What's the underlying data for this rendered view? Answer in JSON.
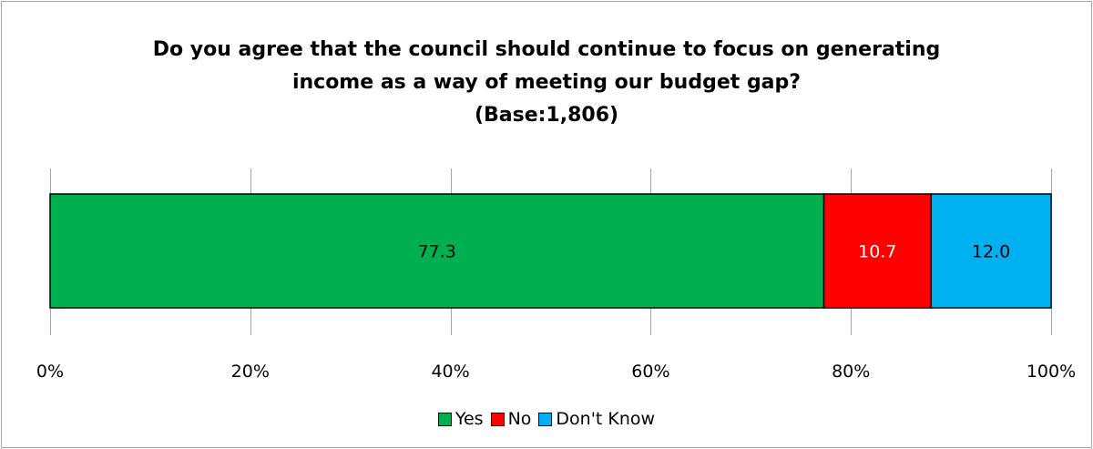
{
  "chart_data": {
    "type": "bar",
    "orientation": "horizontal",
    "stacked": true,
    "title_lines": [
      "Do you agree that the council should continue to focus on generating",
      "income as a way of meeting our budget gap?",
      "(Base:1,806)"
    ],
    "series": [
      {
        "name": "Yes",
        "values": [
          77.3
        ],
        "color": "#00b050",
        "label_color": "#000000"
      },
      {
        "name": "No",
        "values": [
          10.7
        ],
        "color": "#ff0000",
        "label_color": "#ffffff"
      },
      {
        "name": "Don't Know",
        "values": [
          12.0
        ],
        "color": "#00b0f0",
        "label_color": "#000000"
      }
    ],
    "data_labels": [
      "77.3",
      "10.7",
      "12.0"
    ],
    "xlim": [
      0,
      100
    ],
    "x_ticks": [
      0,
      20,
      40,
      60,
      80,
      100
    ],
    "x_tick_labels": [
      "0%",
      "20%",
      "40%",
      "60%",
      "80%",
      "100%"
    ],
    "grid": "vertical",
    "legend_position": "bottom"
  }
}
